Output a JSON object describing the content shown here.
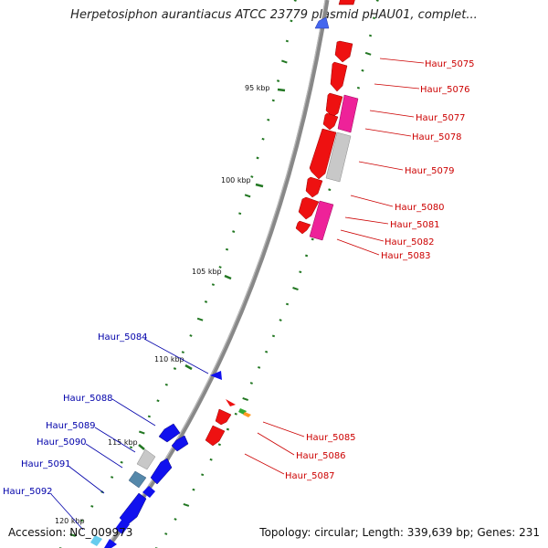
{
  "title": "Herpetosiphon aurantiacus ATCC 23779 plasmid pHAU01, complet...",
  "accession": "Accession: NC_009973",
  "summary": "Topology: circular; Length: 339,639 bp; Genes: 231",
  "ticks": [
    {
      "label": "95 kbp"
    },
    {
      "label": "100 kbp"
    },
    {
      "label": "105 kbp"
    },
    {
      "label": "110 kbp"
    },
    {
      "label": "115 kbp"
    },
    {
      "label": "120 kbp"
    }
  ],
  "genes": [
    {
      "name": "Haur_5075",
      "strand": "+"
    },
    {
      "name": "Haur_5076",
      "strand": "+"
    },
    {
      "name": "Haur_5077",
      "strand": "+"
    },
    {
      "name": "Haur_5078",
      "strand": "+"
    },
    {
      "name": "Haur_5079",
      "strand": "+"
    },
    {
      "name": "Haur_5080",
      "strand": "+"
    },
    {
      "name": "Haur_5081",
      "strand": "+"
    },
    {
      "name": "Haur_5082",
      "strand": "+"
    },
    {
      "name": "Haur_5083",
      "strand": "+"
    },
    {
      "name": "Haur_5084",
      "strand": "-"
    },
    {
      "name": "Haur_5085",
      "strand": "+"
    },
    {
      "name": "Haur_5086",
      "strand": "+"
    },
    {
      "name": "Haur_5087",
      "strand": "+"
    },
    {
      "name": "Haur_5088",
      "strand": "-"
    },
    {
      "name": "Haur_5089",
      "strand": "-"
    },
    {
      "name": "Haur_5090",
      "strand": "-"
    },
    {
      "name": "Haur_5091",
      "strand": "-"
    },
    {
      "name": "Haur_5092",
      "strand": "-"
    }
  ],
  "colors": {
    "forward": "#ee1111",
    "reverse": "#1111ee",
    "forward_label": "#cc0000",
    "reverse_label": "#0000aa",
    "pink": "#ee2299",
    "grey": "#c8c8c8",
    "steel": "#5588aa",
    "tick": "#227722",
    "backbone": "#777777"
  }
}
